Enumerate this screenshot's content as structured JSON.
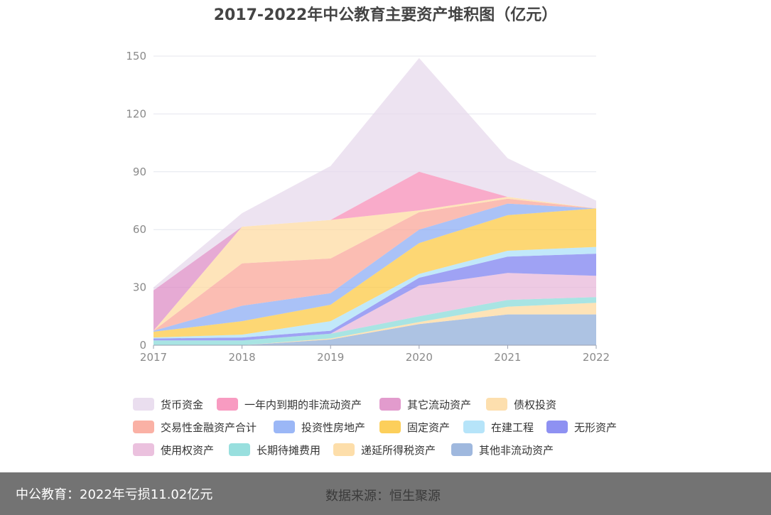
{
  "chart_data": {
    "type": "area",
    "stacked": true,
    "title": "2017-2022年中公教育主要资产堆积图（亿元）",
    "xlabel": "",
    "ylabel": "",
    "ylim": [
      0,
      150
    ],
    "yticks": [
      "0",
      "30",
      "60",
      "90",
      "120",
      "150"
    ],
    "categories": [
      "2017",
      "2018",
      "2019",
      "2020",
      "2021",
      "2022"
    ],
    "grid": true,
    "legend_position": "bottom",
    "series": [
      {
        "name": "其他非流动资产",
        "color": "#8eacd8",
        "values": [
          0,
          0,
          3,
          11,
          16,
          16
        ]
      },
      {
        "name": "递延所得税资产",
        "color": "#fdd89b",
        "values": [
          0,
          0,
          0.5,
          1,
          4,
          6
        ]
      },
      {
        "name": "长期待摊费用",
        "color": "#86d9d8",
        "values": [
          2.5,
          2.5,
          2.5,
          3,
          3.5,
          3
        ]
      },
      {
        "name": "使用权资产",
        "color": "#e8b6d8",
        "values": [
          0,
          0,
          0,
          16,
          14,
          11
        ]
      },
      {
        "name": "无形资产",
        "color": "#7a7ef0",
        "values": [
          1,
          1.5,
          1.5,
          4,
          8.5,
          11.5
        ]
      },
      {
        "name": "在建工程",
        "color": "#a9dff8",
        "values": [
          0.5,
          1.5,
          5,
          2,
          3,
          3.5
        ]
      },
      {
        "name": "固定资产",
        "color": "#fcc73e",
        "values": [
          3,
          7,
          8.5,
          16,
          18.5,
          20
        ]
      },
      {
        "name": "投资性房地产",
        "color": "#89aaf4",
        "values": [
          0.5,
          8,
          6,
          7,
          6,
          0
        ]
      },
      {
        "name": "交易性金融资产合计",
        "color": "#f9a395",
        "values": [
          0,
          22,
          18,
          9,
          2.5,
          0
        ]
      },
      {
        "name": "债权投资",
        "color": "#fdd9a0",
        "values": [
          0,
          19,
          20,
          1,
          1,
          0
        ]
      },
      {
        "name": "其它流动资产",
        "color": "#dd89c4",
        "values": [
          21,
          0,
          0,
          0,
          0,
          0
        ]
      },
      {
        "name": "一年内到期的非流动资产",
        "color": "#f78ab6",
        "values": [
          0,
          0,
          0,
          20,
          0,
          0
        ]
      },
      {
        "name": "货币资金",
        "color": "#e6d8ec",
        "values": [
          1.5,
          7,
          28,
          59,
          20,
          4
        ]
      }
    ]
  },
  "legend_order": [
    "货币资金",
    "一年内到期的非流动资产",
    "其它流动资产",
    "债权投资",
    "交易性金融资产合计",
    "投资性房地产",
    "固定资产",
    "在建工程",
    "无形资产",
    "使用权资产",
    "长期待摊费用",
    "递延所得税资产",
    "其他非流动资产"
  ],
  "footer": {
    "left": "中公教育：2022年亏损11.02亿元",
    "right": "数据来源：恒生聚源"
  }
}
